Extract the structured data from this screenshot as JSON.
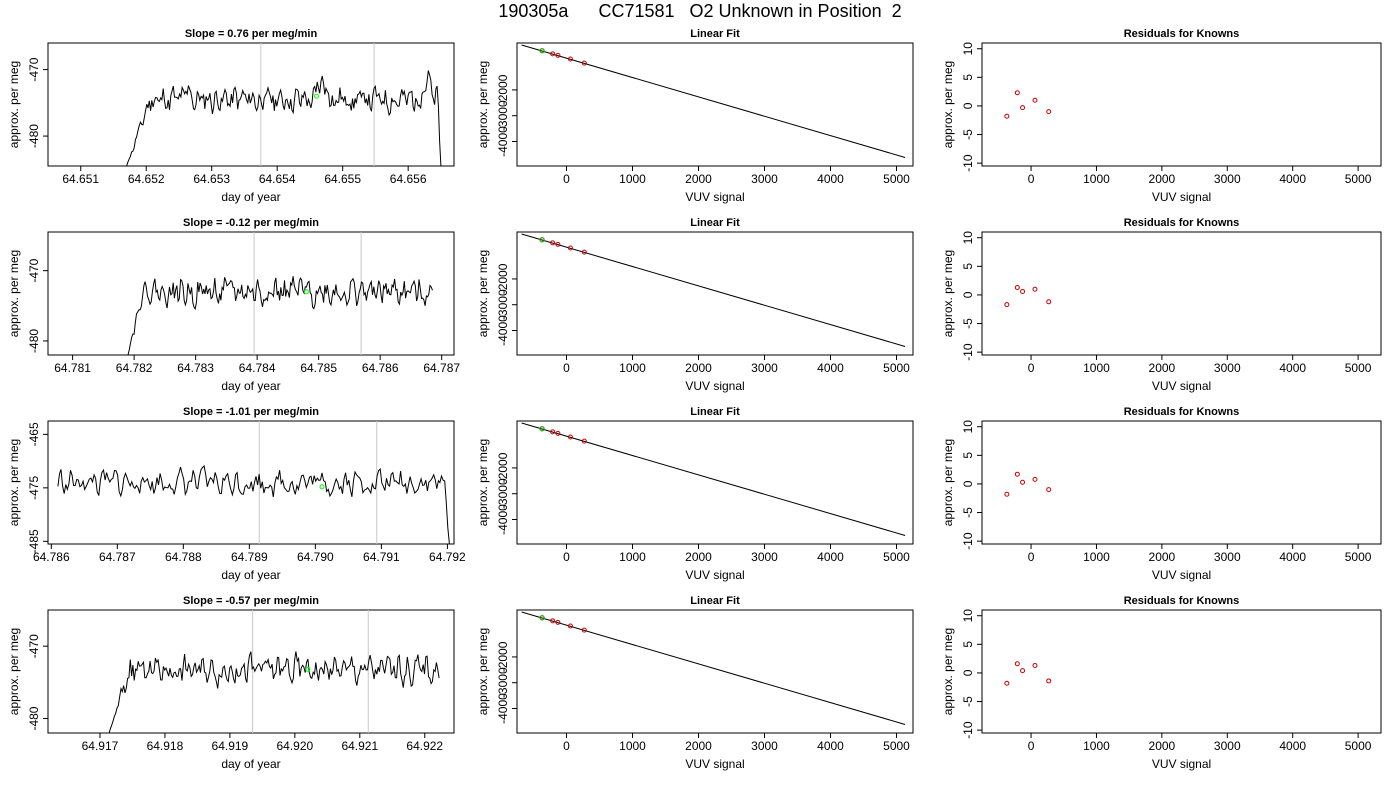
{
  "page_title": "190305a      CC71581   O2 Unknown in Position  2",
  "chart_data": [
    {
      "id": "r1-ts",
      "type": "line",
      "title": "Slope =  0.76  per meg/min",
      "xlabel": "day of year",
      "ylabel": "approx. per meg",
      "xlim": [
        64.6505,
        64.6567
      ],
      "ylim": [
        -484.5,
        -466
      ],
      "xticks": [
        "64.651",
        "64.652",
        "64.653",
        "64.654",
        "64.655",
        "64.656"
      ],
      "yticks": [
        "-470",
        "-480"
      ],
      "vlines": [
        64.65375,
        64.65548
      ],
      "series": {
        "x_start": 64.6517,
        "x_end": 64.6565,
        "count": 250,
        "base": -474.5,
        "amp": 1.4,
        "ramp_until": 64.6521,
        "ramp_from": -484.5,
        "tail_drop_at": 64.65645,
        "tail_drop_to": -484.5,
        "seed": 11,
        "bumps": [
          [
            64.6546,
            64.6548,
            2.0
          ],
          [
            64.6562,
            64.65635,
            2.5
          ],
          [
            64.6526,
            64.6527,
            1.2
          ]
        ]
      },
      "marker": {
        "x": 64.6546,
        "y": -474.0,
        "color": "#00ff00"
      }
    },
    {
      "id": "r1-fit",
      "type": "line",
      "title": "Linear Fit",
      "xlabel": "VUV signal",
      "ylabel": "approx. per meg",
      "xlim": [
        -750,
        5250
      ],
      "ylim": [
        -4950,
        -180
      ],
      "xticks": [
        "0",
        "1000",
        "2000",
        "3000",
        "4000",
        "5000"
      ],
      "yticks": [
        "-2000",
        "-3000",
        "-4000"
      ],
      "line": [
        [
          -680,
          -258
        ],
        [
          5130,
          -4620
        ]
      ],
      "points": [
        [
          -370,
          -480
        ],
        [
          -210,
          -600
        ],
        [
          -130,
          -660
        ],
        [
          60,
          -800
        ],
        [
          270,
          -960
        ]
      ],
      "highlight": {
        "x": -370,
        "y": -480
      }
    },
    {
      "id": "r1-res",
      "type": "scatter",
      "title": "Residuals for Knowns",
      "xlabel": "VUV signal",
      "ylabel": "approx. per meg",
      "xlim": [
        -750,
        5350
      ],
      "ylim": [
        -10.5,
        11
      ],
      "xticks": [
        "0",
        "1000",
        "2000",
        "3000",
        "4000",
        "5000"
      ],
      "yticks": [
        "-10",
        "-5",
        "0",
        "5",
        "10"
      ],
      "points": [
        [
          -370,
          -1.8
        ],
        [
          -210,
          2.3
        ],
        [
          -130,
          -0.3
        ],
        [
          60,
          1.0
        ],
        [
          270,
          -1.0
        ]
      ]
    },
    {
      "id": "r2-ts",
      "type": "line",
      "title": "Slope =  -0.12  per meg/min",
      "xlabel": "day of year",
      "ylabel": "approx. per meg",
      "xlim": [
        64.7806,
        64.7872
      ],
      "ylim": [
        -482,
        -464.5
      ],
      "xticks": [
        "64.781",
        "64.782",
        "64.783",
        "64.784",
        "64.785",
        "64.786",
        "64.787"
      ],
      "yticks": [
        "-470",
        "-480"
      ],
      "vlines": [
        64.78395,
        64.78569
      ],
      "series": {
        "x_start": 64.7819,
        "x_end": 64.78685,
        "count": 250,
        "base": -473.0,
        "amp": 1.4,
        "ramp_until": 64.78215,
        "ramp_from": -482,
        "tail_drop_at": null,
        "tail_drop_to": null,
        "seed": 22,
        "bumps": []
      },
      "marker": {
        "x": 64.7848,
        "y": -473.0,
        "color": "#00ff00"
      }
    },
    {
      "id": "r2-fit",
      "type": "line",
      "title": "Linear Fit",
      "xlabel": "VUV signal",
      "ylabel": "approx. per meg",
      "xlim": [
        -750,
        5250
      ],
      "ylim": [
        -4950,
        -180
      ],
      "xticks": [
        "0",
        "1000",
        "2000",
        "3000",
        "4000",
        "5000"
      ],
      "yticks": [
        "-2000",
        "-3000",
        "-4000"
      ],
      "line": [
        [
          -680,
          -258
        ],
        [
          5130,
          -4620
        ]
      ],
      "points": [
        [
          -370,
          -480
        ],
        [
          -210,
          -600
        ],
        [
          -130,
          -660
        ],
        [
          60,
          -800
        ],
        [
          270,
          -960
        ]
      ],
      "highlight": {
        "x": -370,
        "y": -480
      }
    },
    {
      "id": "r2-res",
      "type": "scatter",
      "title": "Residuals for Knowns",
      "xlabel": "VUV signal",
      "ylabel": "approx. per meg",
      "xlim": [
        -750,
        5350
      ],
      "ylim": [
        -10.5,
        11
      ],
      "xticks": [
        "0",
        "1000",
        "2000",
        "3000",
        "4000",
        "5000"
      ],
      "yticks": [
        "-10",
        "-5",
        "0",
        "5",
        "10"
      ],
      "points": [
        [
          -370,
          -1.7
        ],
        [
          -210,
          1.3
        ],
        [
          -130,
          0.6
        ],
        [
          60,
          1.0
        ],
        [
          270,
          -1.2
        ]
      ]
    },
    {
      "id": "r3-ts",
      "type": "line",
      "title": "Slope =  -1.01  per meg/min",
      "xlabel": "day of year",
      "ylabel": "approx. per meg",
      "xlim": [
        64.78595,
        64.7921
      ],
      "ylim": [
        -485.5,
        -462.5
      ],
      "xticks": [
        "64.786",
        "64.787",
        "64.788",
        "64.789",
        "64.790",
        "64.791",
        "64.792"
      ],
      "yticks": [
        "-465",
        "-475",
        "-485"
      ],
      "vlines": [
        64.78915,
        64.79093
      ],
      "series": {
        "x_start": 64.7861,
        "x_end": 64.79203,
        "count": 250,
        "base": -474.0,
        "amp": 1.7,
        "ramp_until": null,
        "ramp_from": null,
        "tail_drop_at": 64.79195,
        "tail_drop_to": -485.5,
        "seed": 33,
        "bumps": []
      },
      "marker": {
        "x": 64.7901,
        "y": -474.8,
        "color": "#00ff00"
      }
    },
    {
      "id": "r3-fit",
      "type": "line",
      "title": "Linear Fit",
      "xlabel": "VUV signal",
      "ylabel": "approx. per meg",
      "xlim": [
        -750,
        5250
      ],
      "ylim": [
        -4950,
        -180
      ],
      "xticks": [
        "0",
        "1000",
        "2000",
        "3000",
        "4000",
        "5000"
      ],
      "yticks": [
        "-2000",
        "-3000",
        "-4000"
      ],
      "line": [
        [
          -680,
          -258
        ],
        [
          5130,
          -4620
        ]
      ],
      "points": [
        [
          -370,
          -480
        ],
        [
          -210,
          -600
        ],
        [
          -130,
          -660
        ],
        [
          60,
          -800
        ],
        [
          270,
          -960
        ]
      ],
      "highlight": {
        "x": -370,
        "y": -480
      }
    },
    {
      "id": "r3-res",
      "type": "scatter",
      "title": "Residuals for Knowns",
      "xlabel": "VUV signal",
      "ylabel": "approx. per meg",
      "xlim": [
        -750,
        5350
      ],
      "ylim": [
        -10.5,
        11
      ],
      "xticks": [
        "0",
        "1000",
        "2000",
        "3000",
        "4000",
        "5000"
      ],
      "yticks": [
        "-10",
        "-5",
        "0",
        "5",
        "10"
      ],
      "points": [
        [
          -370,
          -1.8
        ],
        [
          -210,
          1.7
        ],
        [
          -130,
          0.3
        ],
        [
          60,
          0.8
        ],
        [
          270,
          -1.0
        ]
      ]
    },
    {
      "id": "r4-ts",
      "type": "line",
      "title": "Slope =  -0.57  per meg/min",
      "xlabel": "day of year",
      "ylabel": "approx. per meg",
      "xlim": [
        64.9162,
        64.92245
      ],
      "ylim": [
        -482,
        -465
      ],
      "xticks": [
        "64.917",
        "64.918",
        "64.919",
        "64.920",
        "64.921",
        "64.922"
      ],
      "yticks": [
        "-470",
        "-480"
      ],
      "vlines": [
        64.91935,
        64.92113
      ],
      "series": {
        "x_start": 64.91714,
        "x_end": 64.92222,
        "count": 250,
        "base": -473.2,
        "amp": 1.4,
        "ramp_until": 64.9175,
        "ramp_from": -482,
        "tail_drop_at": null,
        "tail_drop_to": null,
        "seed": 44,
        "bumps": []
      },
      "marker": {
        "x": 64.9202,
        "y": -473.2,
        "color": "#00ff00"
      }
    },
    {
      "id": "r4-fit",
      "type": "line",
      "title": "Linear Fit",
      "xlabel": "VUV signal",
      "ylabel": "approx. per meg",
      "xlim": [
        -750,
        5250
      ],
      "ylim": [
        -4950,
        -180
      ],
      "xticks": [
        "0",
        "1000",
        "2000",
        "3000",
        "4000",
        "5000"
      ],
      "yticks": [
        "-2000",
        "-3000",
        "-4000"
      ],
      "line": [
        [
          -680,
          -258
        ],
        [
          5130,
          -4620
        ]
      ],
      "points": [
        [
          -370,
          -480
        ],
        [
          -210,
          -600
        ],
        [
          -130,
          -660
        ],
        [
          60,
          -800
        ],
        [
          270,
          -960
        ]
      ],
      "highlight": {
        "x": -370,
        "y": -480
      }
    },
    {
      "id": "r4-res",
      "type": "scatter",
      "title": "Residuals for Knowns",
      "xlabel": "VUV signal",
      "ylabel": "approx. per meg",
      "xlim": [
        -750,
        5350
      ],
      "ylim": [
        -10.5,
        11
      ],
      "xticks": [
        "0",
        "1000",
        "2000",
        "3000",
        "4000",
        "5000"
      ],
      "yticks": [
        "-10",
        "-5",
        "0",
        "5",
        "10"
      ],
      "points": [
        [
          -370,
          -1.8
        ],
        [
          -210,
          1.6
        ],
        [
          -130,
          0.4
        ],
        [
          60,
          1.3
        ],
        [
          270,
          -1.4
        ]
      ]
    }
  ]
}
